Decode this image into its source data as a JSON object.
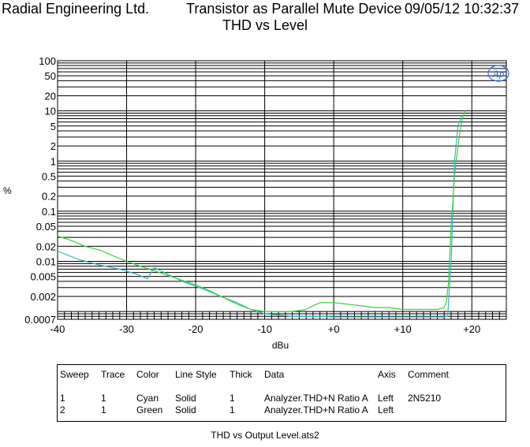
{
  "header": {
    "company": "Radial Engineering Ltd.",
    "title": "Transistor as Parallel Mute Device",
    "datetime": "09/05/12 10:32:37"
  },
  "chart_data": {
    "type": "line",
    "subtitle": "THD vs Level",
    "xlabel": "dBu",
    "ylabel": "%",
    "xlim": [
      -40,
      25
    ],
    "ylim": [
      0.0007,
      100
    ],
    "yscale": "log",
    "grid": true,
    "x_ticks": [
      -40,
      -30,
      -20,
      -10,
      0,
      10,
      20
    ],
    "x_tick_labels": [
      "-40",
      "-30",
      "-20",
      "-10",
      "+0",
      "+10",
      "+20"
    ],
    "y_ticks": [
      100,
      50,
      20,
      10,
      5,
      2,
      1,
      0.5,
      0.2,
      0.1,
      0.05,
      0.02,
      0.01,
      0.005,
      0.002,
      0.0007
    ],
    "y_tick_labels": [
      "100",
      "50",
      "20",
      "10",
      "5",
      "2",
      "1",
      "0.5",
      "0.2",
      "0.1",
      "0.05",
      "0.02",
      "0.01",
      "0.005",
      "0.002",
      "0.0007"
    ],
    "logo_text": "Ap",
    "series": [
      {
        "color": "#33b5c8",
        "x": [
          -40,
          -37,
          -34,
          -31,
          -28.5,
          -27,
          -26,
          -24,
          -22,
          -20,
          -18,
          -16,
          -14,
          -12,
          -10,
          -8,
          -6,
          -4,
          -2,
          0,
          2,
          4,
          6,
          8,
          10,
          12,
          14,
          15,
          16,
          16.5,
          17,
          17.5,
          18,
          18.5
        ],
        "y": [
          0.016,
          0.011,
          0.0085,
          0.007,
          0.0055,
          0.0045,
          0.0075,
          0.0055,
          0.004,
          0.0032,
          0.0025,
          0.0019,
          0.0015,
          0.0011,
          0.0009,
          0.00085,
          0.0008,
          0.0008,
          0.0008,
          0.00078,
          0.00078,
          0.00078,
          0.00078,
          0.00078,
          0.00078,
          0.00078,
          0.00078,
          0.00078,
          0.00078,
          0.0008,
          0.01,
          1.0,
          5.0,
          8.0
        ]
      },
      {
        "color": "#3ccf3c",
        "x": [
          -40,
          -38,
          -36,
          -34,
          -32,
          -30,
          -28,
          -26,
          -24,
          -22,
          -20,
          -18,
          -16,
          -14,
          -12,
          -10,
          -8,
          -6,
          -4,
          -3,
          -2,
          0,
          2,
          4,
          6,
          8,
          10,
          12,
          14,
          15,
          16,
          16.3,
          16.6,
          17,
          17.5,
          18,
          18.5,
          19
        ],
        "y": [
          0.032,
          0.026,
          0.02,
          0.017,
          0.013,
          0.01,
          0.008,
          0.0065,
          0.0052,
          0.0042,
          0.0034,
          0.0026,
          0.0019,
          0.0014,
          0.0011,
          0.001,
          0.001,
          0.001,
          0.0011,
          0.0013,
          0.0015,
          0.0015,
          0.0014,
          0.0013,
          0.0012,
          0.0012,
          0.0011,
          0.0011,
          0.0011,
          0.0011,
          0.0012,
          0.0015,
          0.0035,
          0.05,
          0.5,
          2.0,
          6.0,
          10.0
        ]
      }
    ]
  },
  "legend_table": {
    "headers": [
      "Sweep",
      "Trace",
      "Color",
      "Line Style",
      "Thick",
      "Data",
      "Axis",
      "Comment"
    ],
    "rows": [
      [
        "1",
        "1",
        "Cyan",
        "Solid",
        "1",
        "Analyzer.THD+N Ratio A",
        "Left",
        "2N5210"
      ],
      [
        "2",
        "1",
        "Green",
        "Solid",
        "1",
        "Analyzer.THD+N Ratio A",
        "Left",
        ""
      ]
    ]
  },
  "footer": "THD vs Output Level.ats2"
}
